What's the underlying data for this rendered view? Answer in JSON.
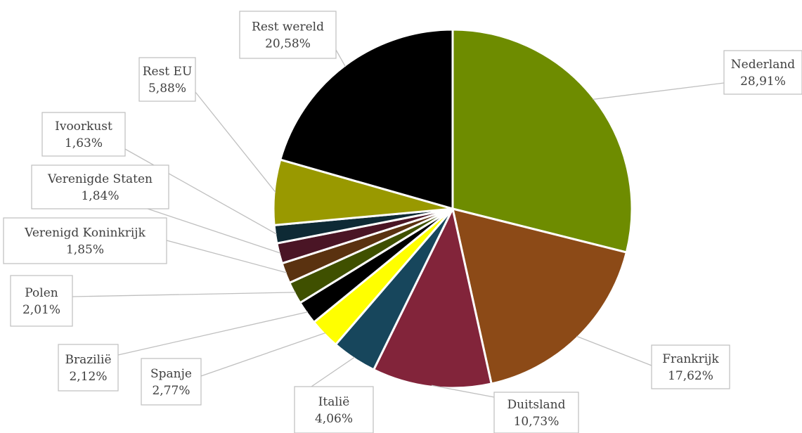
{
  "chart_data": {
    "type": "pie",
    "title": "",
    "slices": [
      {
        "label": "Nederland",
        "value": 28.91,
        "display": "28,91%",
        "color": "#6e8c00"
      },
      {
        "label": "Frankrijk",
        "value": 17.62,
        "display": "17,62%",
        "color": "#8c4a17"
      },
      {
        "label": "Duitsland",
        "value": 10.73,
        "display": "10,73%",
        "color": "#82243a"
      },
      {
        "label": "Italië",
        "value": 4.06,
        "display": "4,06%",
        "color": "#17465c"
      },
      {
        "label": "Spanje",
        "value": 2.77,
        "display": "2,77%",
        "color": "#ffff00"
      },
      {
        "label": "Brazilië",
        "value": 2.12,
        "display": "2,12%",
        "color": "#000000"
      },
      {
        "label": "Polen",
        "value": 2.01,
        "display": "2,01%",
        "color": "#3f5000"
      },
      {
        "label": "Verenigd Koninkrijk",
        "value": 1.85,
        "display": "1,85%",
        "color": "#5a3210"
      },
      {
        "label": "Verenigde Staten",
        "value": 1.84,
        "display": "1,84%",
        "color": "#4a1525"
      },
      {
        "label": "Ivoorkust",
        "value": 1.63,
        "display": "1,63%",
        "color": "#0e2a35"
      },
      {
        "label": "Rest EU",
        "value": 5.88,
        "display": "5,88%",
        "color": "#999900"
      },
      {
        "label": "Rest wereld",
        "value": 20.58,
        "display": "20,58%",
        "color": "#000000"
      }
    ],
    "legend": "none",
    "start_angle": "12 o'clock",
    "direction": "clockwise"
  }
}
